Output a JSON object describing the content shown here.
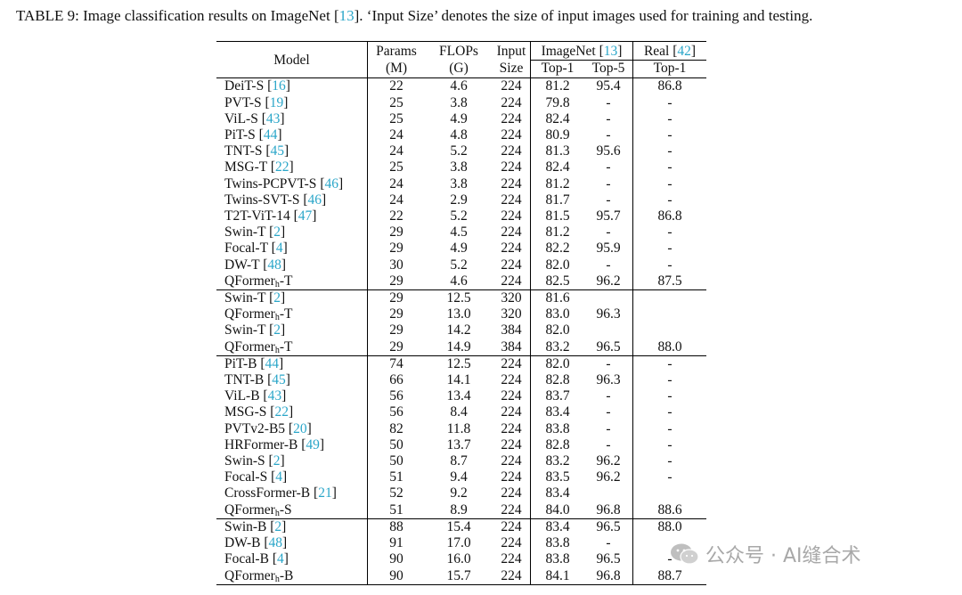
{
  "caption": {
    "prefix": "TABLE 9: Image classification results on ImageNet [",
    "cite": "13",
    "suffix": "]. ‘Input Size’ denotes the size of input images used for training and testing."
  },
  "header": {
    "model": "Model",
    "params_1": "Params",
    "params_2": "(M)",
    "flops_1": "FLOPs",
    "flops_2": "(G)",
    "input_1": "Input",
    "input_2": "Size",
    "imagenet": "ImageNet",
    "imagenet_cite": "13",
    "top1": "Top-1",
    "top5": "Top-5",
    "real": "Real",
    "real_cite": "42",
    "real_top1": "Top-1"
  },
  "rows": [
    {
      "name": "DeiT-S",
      "cite": "16",
      "params": "22",
      "flops": "4.6",
      "input": "224",
      "top1": "81.2",
      "top5": "95.4",
      "real": "86.8"
    },
    {
      "name": "PVT-S",
      "cite": "19",
      "params": "25",
      "flops": "3.8",
      "input": "224",
      "top1": "79.8",
      "top5": "-",
      "real": "-"
    },
    {
      "name": "ViL-S",
      "cite": "43",
      "params": "25",
      "flops": "4.9",
      "input": "224",
      "top1": "82.4",
      "top5": "-",
      "real": "-"
    },
    {
      "name": "PiT-S",
      "cite": "44",
      "params": "24",
      "flops": "4.8",
      "input": "224",
      "top1": "80.9",
      "top5": "-",
      "real": "-"
    },
    {
      "name": "TNT-S",
      "cite": "45",
      "params": "24",
      "flops": "5.2",
      "input": "224",
      "top1": "81.3",
      "top5": "95.6",
      "real": "-"
    },
    {
      "name": "MSG-T",
      "cite": "22",
      "params": "25",
      "flops": "3.8",
      "input": "224",
      "top1": "82.4",
      "top5": "-",
      "real": "-"
    },
    {
      "name": "Twins-PCPVT-S",
      "cite": "46",
      "params": "24",
      "flops": "3.8",
      "input": "224",
      "top1": "81.2",
      "top5": "-",
      "real": "-"
    },
    {
      "name": "Twins-SVT-S",
      "cite": "46",
      "params": "24",
      "flops": "2.9",
      "input": "224",
      "top1": "81.7",
      "top5": "-",
      "real": "-"
    },
    {
      "name": "T2T-ViT-14",
      "cite": "47",
      "params": "22",
      "flops": "5.2",
      "input": "224",
      "top1": "81.5",
      "top5": "95.7",
      "real": "86.8"
    },
    {
      "name": "Swin-T",
      "cite": "2",
      "params": "29",
      "flops": "4.5",
      "input": "224",
      "top1": "81.2",
      "top5": "-",
      "real": "-"
    },
    {
      "name": "Focal-T",
      "cite": "4",
      "params": "29",
      "flops": "4.9",
      "input": "224",
      "top1": "82.2",
      "top5": "95.9",
      "real": "-"
    },
    {
      "name": "DW-T",
      "cite": "48",
      "params": "30",
      "flops": "5.2",
      "input": "224",
      "top1": "82.0",
      "top5": "-",
      "real": "-"
    },
    {
      "name": "QFormer",
      "sub": "h",
      "tail": "-T",
      "params": "29",
      "flops": "4.6",
      "input": "224",
      "top1": "82.5",
      "top5": "96.2",
      "real": "87.5"
    },
    {
      "name": "Swin-T",
      "cite": "2",
      "params": "29",
      "flops": "12.5",
      "input": "320",
      "top1": "81.6",
      "top5": "",
      "real": "",
      "sep": true
    },
    {
      "name": "QFormer",
      "sub": "h",
      "tail": "-T",
      "params": "29",
      "flops": "13.0",
      "input": "320",
      "top1": "83.0",
      "top5": "96.3",
      "real": ""
    },
    {
      "name": "Swin-T",
      "cite": "2",
      "params": "29",
      "flops": "14.2",
      "input": "384",
      "top1": "82.0",
      "top5": "",
      "real": ""
    },
    {
      "name": "QFormer",
      "sub": "h",
      "tail": "-T",
      "params": "29",
      "flops": "14.9",
      "input": "384",
      "top1": "83.2",
      "top5": "96.5",
      "real": "88.0"
    },
    {
      "name": "PiT-B",
      "cite": "44",
      "params": "74",
      "flops": "12.5",
      "input": "224",
      "top1": "82.0",
      "top5": "-",
      "real": "-",
      "sep": true
    },
    {
      "name": "TNT-B",
      "cite": "45",
      "params": "66",
      "flops": "14.1",
      "input": "224",
      "top1": "82.8",
      "top5": "96.3",
      "real": "-"
    },
    {
      "name": "ViL-B",
      "cite": "43",
      "params": "56",
      "flops": "13.4",
      "input": "224",
      "top1": "83.7",
      "top5": "-",
      "real": "-"
    },
    {
      "name": "MSG-S",
      "cite": "22",
      "params": "56",
      "flops": "8.4",
      "input": "224",
      "top1": "83.4",
      "top5": "-",
      "real": "-"
    },
    {
      "name": "PVTv2-B5",
      "cite": "20",
      "params": "82",
      "flops": "11.8",
      "input": "224",
      "top1": "83.8",
      "top5": "-",
      "real": "-"
    },
    {
      "name": "HRFormer-B",
      "cite": "49",
      "params": "50",
      "flops": "13.7",
      "input": "224",
      "top1": "82.8",
      "top5": "-",
      "real": "-"
    },
    {
      "name": "Swin-S",
      "cite": "2",
      "params": "50",
      "flops": "8.7",
      "input": "224",
      "top1": "83.2",
      "top5": "96.2",
      "real": "-"
    },
    {
      "name": "Focal-S",
      "cite": "4",
      "params": "51",
      "flops": "9.4",
      "input": "224",
      "top1": "83.5",
      "top5": "96.2",
      "real": "-"
    },
    {
      "name": "CrossFormer-B",
      "cite": "21",
      "params": "52",
      "flops": "9.2",
      "input": "224",
      "top1": "83.4",
      "top5": "",
      "real": ""
    },
    {
      "name": "QFormer",
      "sub": "h",
      "tail": "-S",
      "params": "51",
      "flops": "8.9",
      "input": "224",
      "top1": "84.0",
      "top5": "96.8",
      "real": "88.6"
    },
    {
      "name": "Swin-B",
      "cite": "2",
      "params": "88",
      "flops": "15.4",
      "input": "224",
      "top1": "83.4",
      "top5": "96.5",
      "real": "88.0",
      "sep": true
    },
    {
      "name": "DW-B",
      "cite": "48",
      "params": "91",
      "flops": "17.0",
      "input": "224",
      "top1": "83.8",
      "top5": "-",
      "real": ""
    },
    {
      "name": "Focal-B",
      "cite": "4",
      "params": "90",
      "flops": "16.0",
      "input": "224",
      "top1": "83.8",
      "top5": "96.5",
      "real": "-"
    },
    {
      "name": "QFormer",
      "sub": "h",
      "tail": "-B",
      "params": "90",
      "flops": "15.7",
      "input": "224",
      "top1": "84.1",
      "top5": "96.8",
      "real": "88.7"
    }
  ],
  "watermark": {
    "text": "公众号 · AI缝合术",
    "icon": "wechat-icon"
  }
}
